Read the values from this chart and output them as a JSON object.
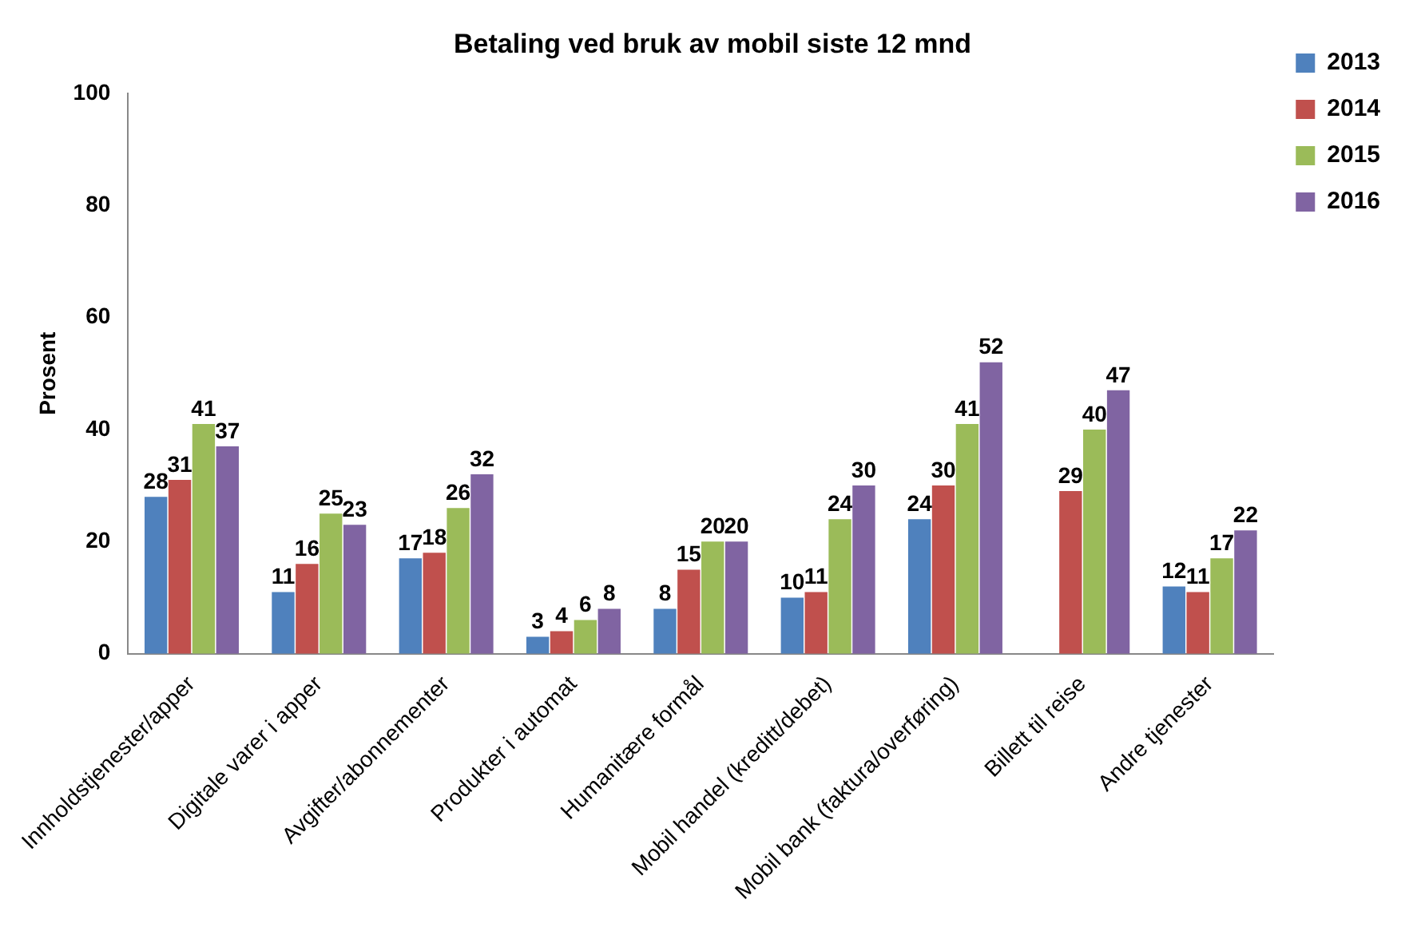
{
  "chart_data": {
    "type": "bar",
    "title": "Betaling ved bruk av mobil siste 12 mnd",
    "ylabel": "Prosent",
    "categories": [
      "Innholdstjenester/apper",
      "Digitale varer i apper",
      "Avgifter/abonnementer",
      "Produkter i automat",
      "Humanitære formål",
      "Mobil handel (kreditt/debet)",
      "Mobil bank (faktura/overføring)",
      "Billett til reise",
      "Andre tjenester"
    ],
    "series": [
      {
        "name": "2013",
        "color": "#4f81bd",
        "values": [
          28,
          11,
          17,
          3,
          8,
          10,
          24,
          null,
          12
        ]
      },
      {
        "name": "2014",
        "color": "#c0504d",
        "values": [
          31,
          16,
          18,
          4,
          15,
          11,
          30,
          29,
          11
        ]
      },
      {
        "name": "2015",
        "color": "#9bbb59",
        "values": [
          41,
          25,
          26,
          6,
          20,
          24,
          41,
          40,
          17
        ]
      },
      {
        "name": "2016",
        "color": "#8064a2",
        "values": [
          37,
          23,
          32,
          8,
          20,
          30,
          52,
          47,
          22
        ]
      }
    ],
    "ylim": [
      0,
      100
    ],
    "yticks": [
      0,
      20,
      40,
      60,
      80,
      100
    ],
    "grid": false,
    "legend": "top right",
    "data_labels": true
  }
}
